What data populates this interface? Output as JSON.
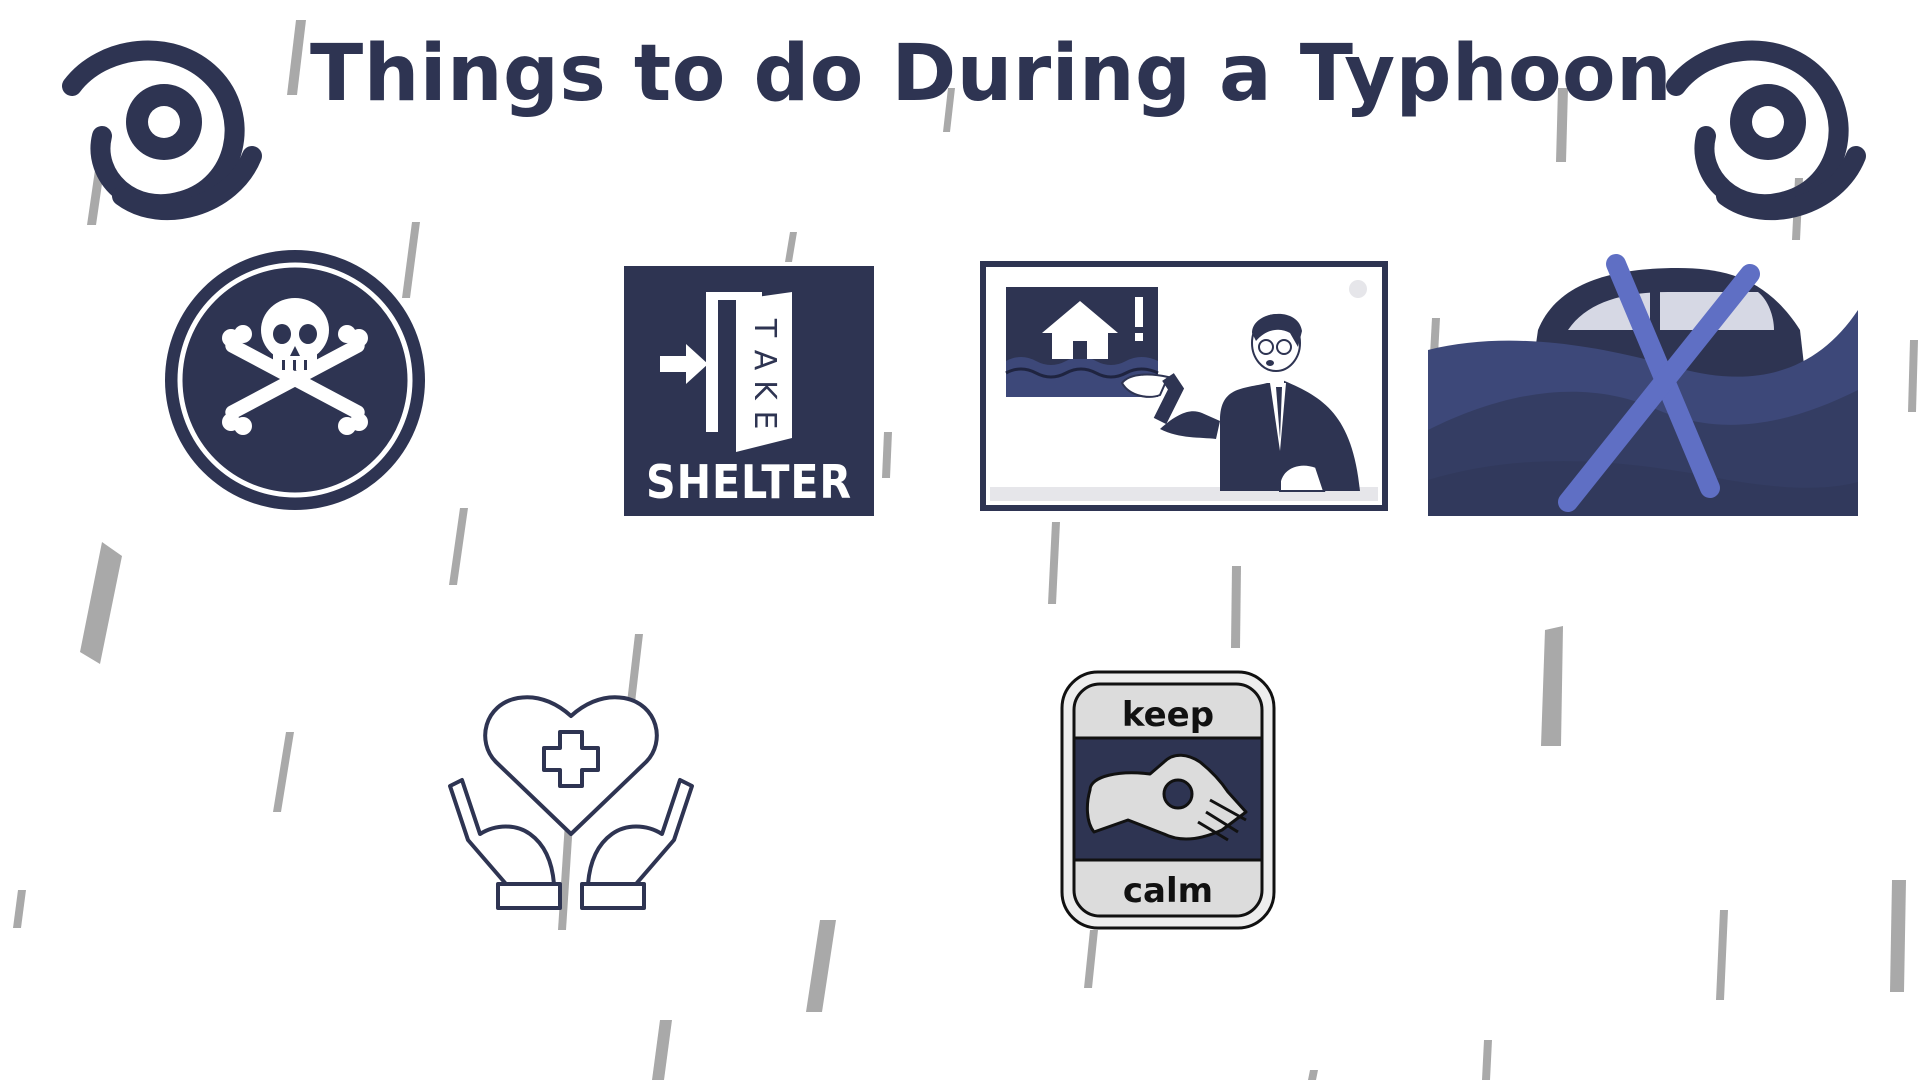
{
  "page": {
    "title": "Things to do During a Typhoon"
  },
  "icons": {
    "typhoon_left": "typhoon-icon",
    "typhoon_right": "typhoon-icon",
    "danger": "skull-crossbones-icon",
    "shelter": "take-shelter-door-icon",
    "news": "news-anchor-flood-alert-icon",
    "flood_car": "flooded-car-crossed-out-icon",
    "health": "hands-heart-medical-icon",
    "calm": "keep-calm-hand-sign-icon"
  },
  "shelter_sign": {
    "take": [
      "T",
      "A",
      "K",
      "E"
    ],
    "shelter": "SHELTER"
  },
  "keep_calm": {
    "top": "keep",
    "bottom": "calm"
  },
  "colors": {
    "navy": "#2e3452",
    "periwinkle": "#5f6fc4",
    "wave": "#3d4879",
    "rain": "#a9a9a9"
  }
}
